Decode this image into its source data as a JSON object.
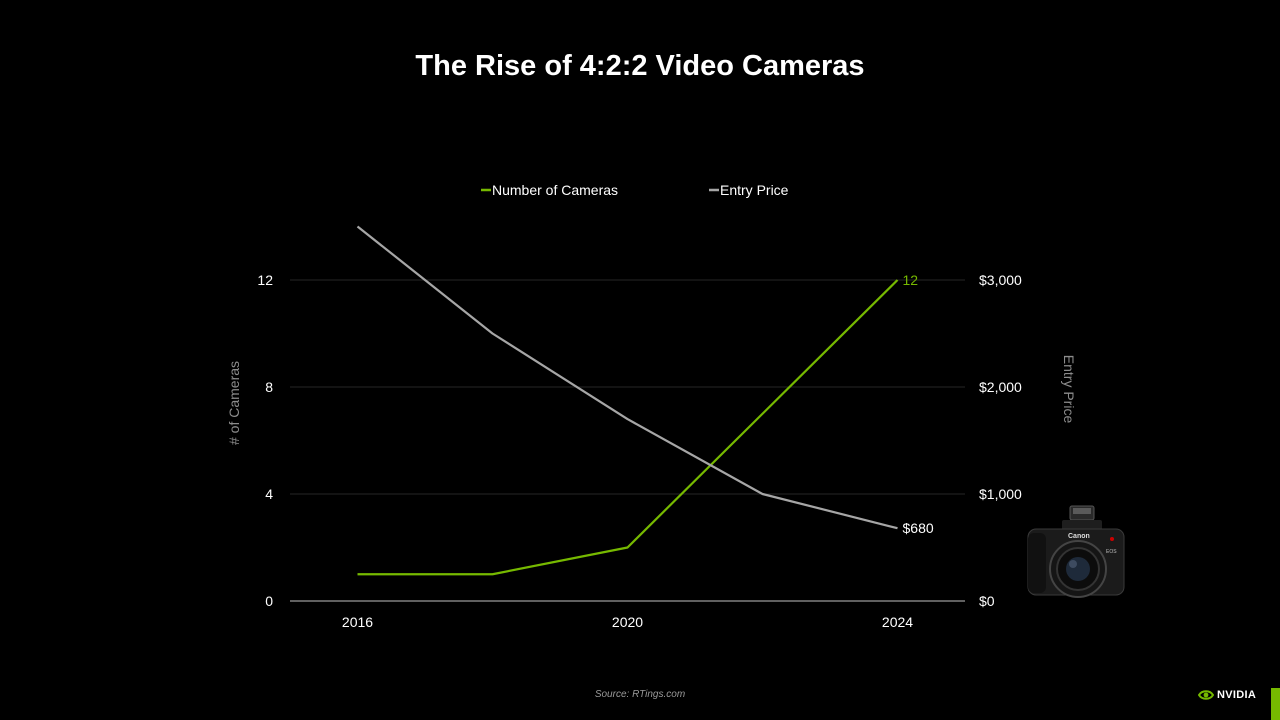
{
  "title": "The Rise of 4:2:2 Video Cameras",
  "source": "Source: RTings.com",
  "brand": "NVIDIA",
  "colors": {
    "background": "#000000",
    "cameras": "#76b900",
    "price": "#a6a6a6",
    "accent": "#76b900"
  },
  "chart_data": {
    "type": "line",
    "title": "The Rise of 4:2:2 Video Cameras",
    "x": [
      2016,
      2018,
      2020,
      2022,
      2024
    ],
    "xticks": [
      "2016",
      "2020",
      "2024"
    ],
    "xlim": [
      2015,
      2025
    ],
    "legend": "top",
    "grid": true,
    "ylabel_left": "# of Cameras",
    "ylabel_right": "Entry Price",
    "ylim_left": [
      0,
      12
    ],
    "ylim_right": [
      0,
      3000
    ],
    "yticks_left": [
      "0",
      "4",
      "8",
      "12"
    ],
    "yticks_right": [
      "$0",
      "$1,000",
      "$2,000",
      "$3,000"
    ],
    "series": [
      {
        "name": "Number of Cameras",
        "axis": "left",
        "color": "#76b900",
        "values": [
          1,
          1,
          2,
          7,
          12
        ],
        "end_label": "12"
      },
      {
        "name": "Entry Price",
        "axis": "right",
        "color": "#a6a6a6",
        "values": [
          3500,
          2500,
          1700,
          1000,
          680
        ],
        "end_label": "$680"
      }
    ]
  }
}
